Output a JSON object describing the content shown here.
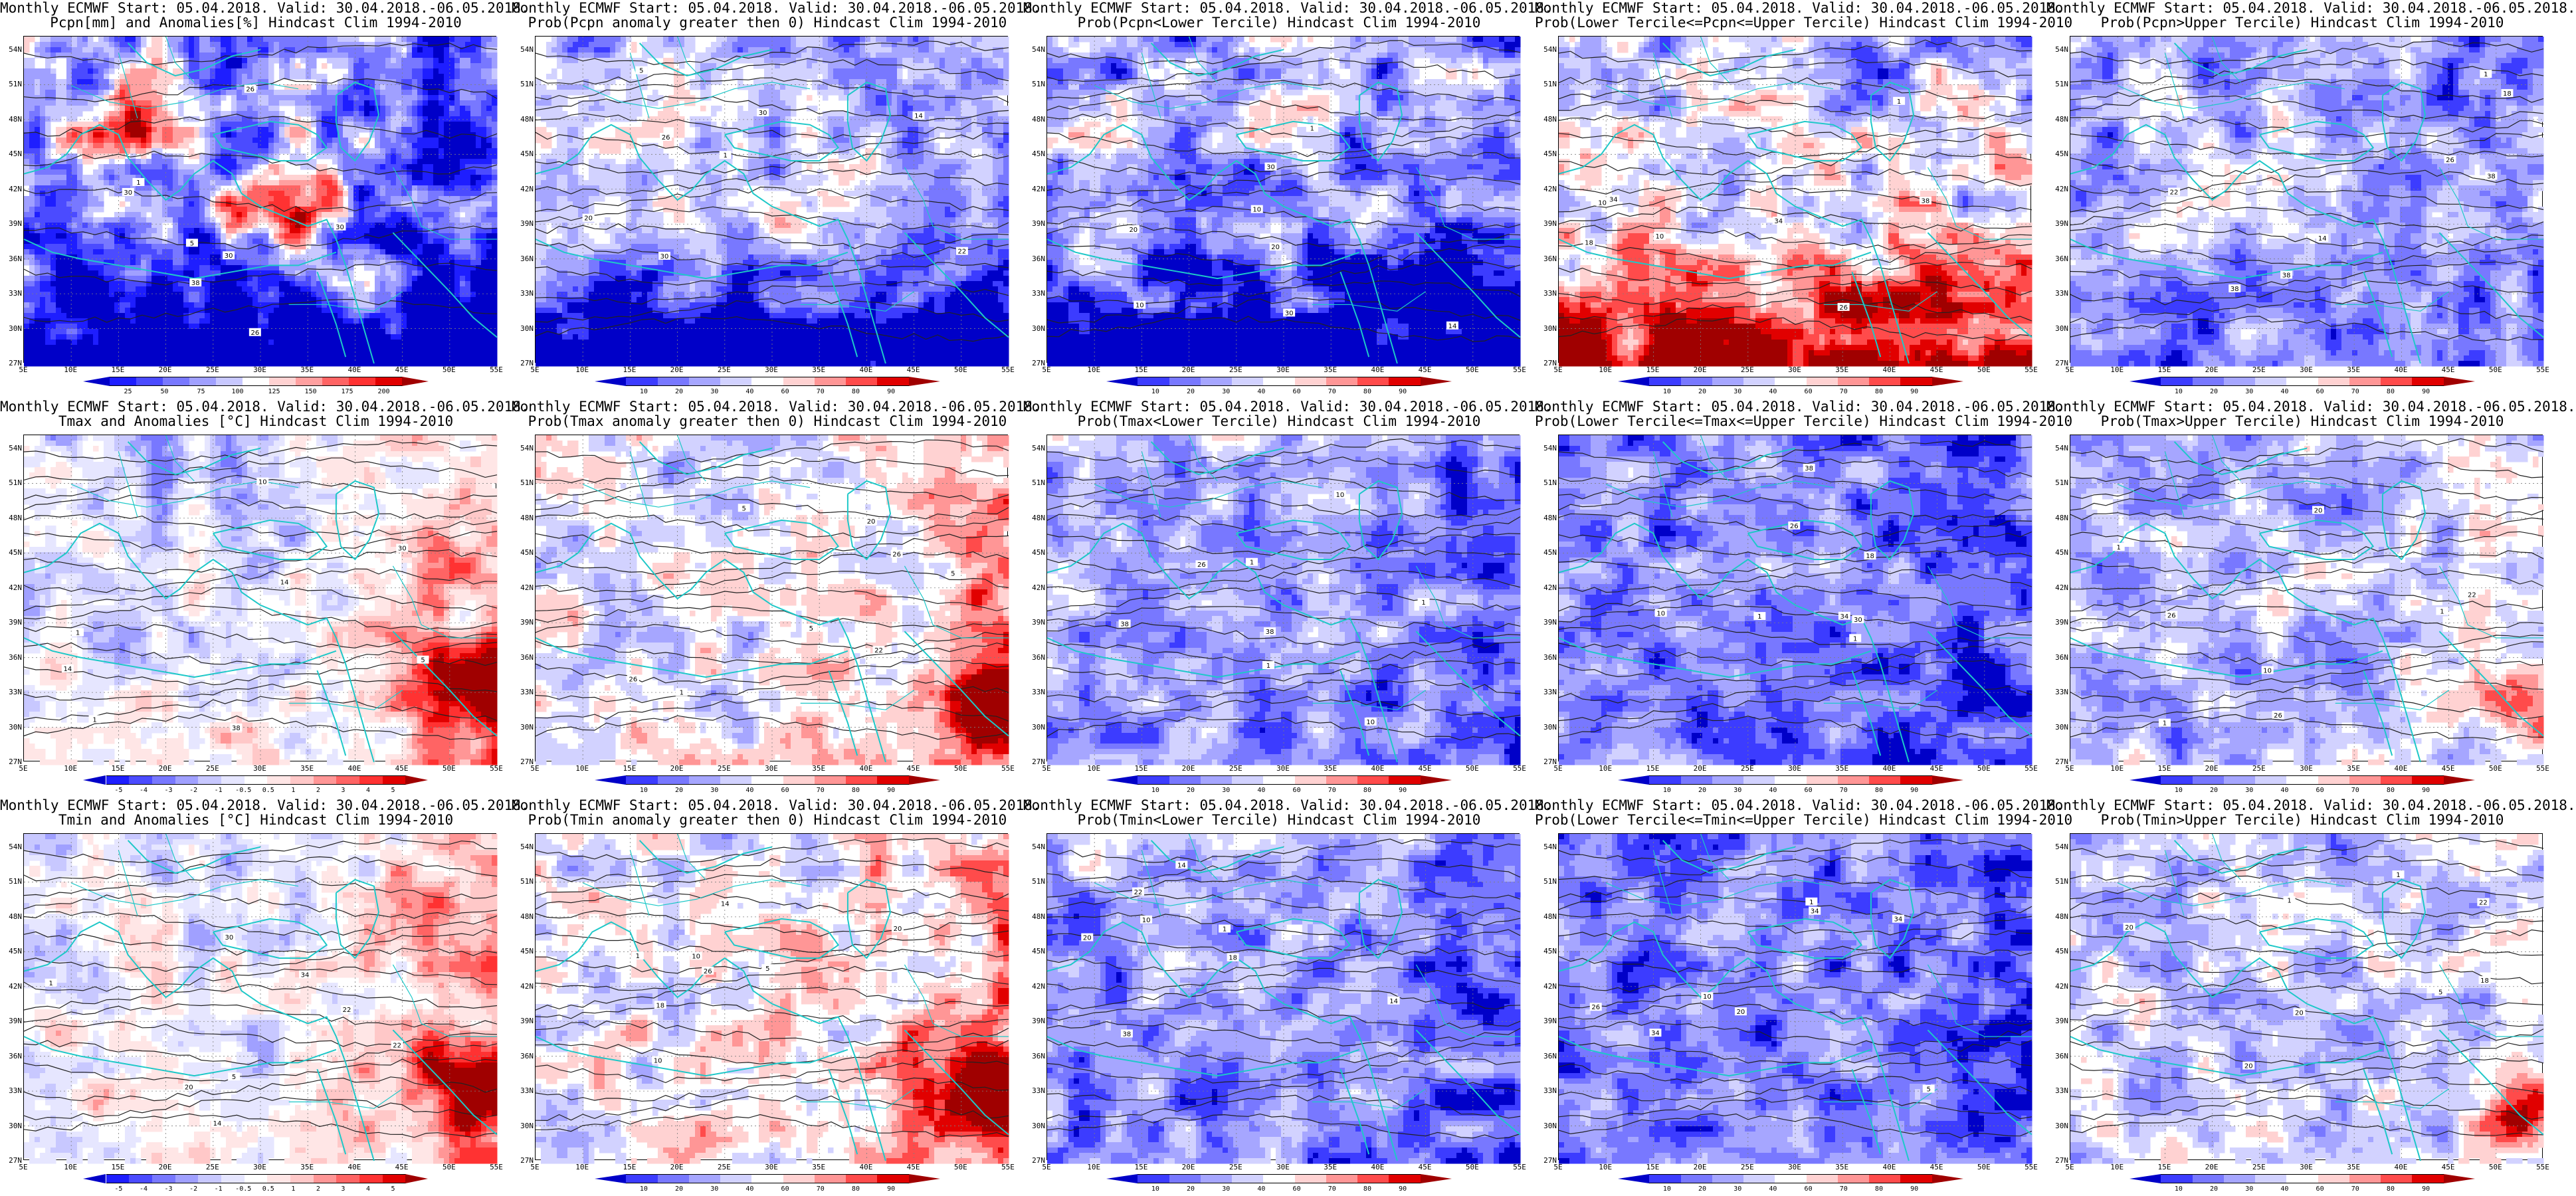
{
  "panels": [
    {
      "id": "pcpn-anom",
      "t1": "Monthly ECMWF Start: 05.04.2018. Valid: 30.04.2018.-06.05.2018.",
      "t2": "Pcpn[mm] and Anomalies[%] Hindcast Clim 1994-2010",
      "cbar": "pcpn"
    },
    {
      "id": "pcpn-prob-pos",
      "t1": "Monthly ECMWF Start: 05.04.2018. Valid: 30.04.2018.-06.05.2018.",
      "t2": "Prob(Pcpn anomaly greater then 0) Hindcast Clim 1994-2010",
      "cbar": "prob"
    },
    {
      "id": "pcpn-prob-lower",
      "t1": "Monthly ECMWF Start: 05.04.2018. Valid: 30.04.2018.-06.05.2018.",
      "t2": "Prob(Pcpn<Lower Tercile) Hindcast Clim 1994-2010",
      "cbar": "prob"
    },
    {
      "id": "pcpn-prob-middle",
      "t1": "Monthly ECMWF Start: 05.04.2018. Valid: 30.04.2018.-06.05.2018.",
      "t2": "Prob(Lower Tercile<=Pcpn<=Upper Tercile) Hindcast Clim 1994-2010",
      "cbar": "prob"
    },
    {
      "id": "pcpn-prob-upper",
      "t1": "Monthly ECMWF Start: 05.04.2018. Valid: 30.04.2018.-06.05.2018.",
      "t2": "Prob(Pcpn>Upper Tercile) Hindcast Clim 1994-2010",
      "cbar": "prob"
    },
    {
      "id": "tmax-anom",
      "t1": "Monthly ECMWF Start: 05.04.2018. Valid: 30.04.2018.-06.05.2018.",
      "t2": "Tmax and Anomalies [°C] Hindcast Clim 1994-2010",
      "cbar": "temp"
    },
    {
      "id": "tmax-prob-pos",
      "t1": "Monthly ECMWF Start: 05.04.2018. Valid: 30.04.2018.-06.05.2018.",
      "t2": "Prob(Tmax anomaly greater then 0) Hindcast Clim 1994-2010",
      "cbar": "prob"
    },
    {
      "id": "tmax-prob-lower",
      "t1": "Monthly ECMWF Start: 05.04.2018. Valid: 30.04.2018.-06.05.2018.",
      "t2": "Prob(Tmax<Lower Tercile) Hindcast Clim 1994-2010",
      "cbar": "prob"
    },
    {
      "id": "tmax-prob-middle",
      "t1": "Monthly ECMWF Start: 05.04.2018. Valid: 30.04.2018.-06.05.2018.",
      "t2": "Prob(Lower Tercile<=Tmax<=Upper Tercile) Hindcast Clim 1994-2010",
      "cbar": "prob"
    },
    {
      "id": "tmax-prob-upper",
      "t1": "Monthly ECMWF Start: 05.04.2018. Valid: 30.04.2018.-06.05.2018.",
      "t2": "Prob(Tmax>Upper Tercile) Hindcast Clim 1994-2010",
      "cbar": "prob"
    },
    {
      "id": "tmin-anom",
      "t1": "Monthly ECMWF Start: 05.04.2018. Valid: 30.04.2018.-06.05.2018.",
      "t2": "Tmin and Anomalies [°C] Hindcast Clim 1994-2010",
      "cbar": "temp"
    },
    {
      "id": "tmin-prob-pos",
      "t1": "Monthly ECMWF Start: 05.04.2018. Valid: 30.04.2018.-06.05.2018.",
      "t2": "Prob(Tmin anomaly greater then 0) Hindcast Clim 1994-2010",
      "cbar": "prob"
    },
    {
      "id": "tmin-prob-lower",
      "t1": "Monthly ECMWF Start: 05.04.2018. Valid: 30.04.2018.-06.05.2018.",
      "t2": "Prob(Tmin<Lower Tercile) Hindcast Clim 1994-2010",
      "cbar": "prob"
    },
    {
      "id": "tmin-prob-middle",
      "t1": "Monthly ECMWF Start: 05.04.2018. Valid: 30.04.2018.-06.05.2018.",
      "t2": "Prob(Lower Tercile<=Tmin<=Upper Tercile) Hindcast Clim 1994-2010",
      "cbar": "prob"
    },
    {
      "id": "tmin-prob-upper",
      "t1": "Monthly ECMWF Start: 05.04.2018. Valid: 30.04.2018.-06.05.2018.",
      "t2": "Prob(Tmin>Upper Tercile) Hindcast Clim 1994-2010",
      "cbar": "prob"
    }
  ],
  "axes": {
    "lat_labels": [
      "54N",
      "51N",
      "48N",
      "45N",
      "42N",
      "39N",
      "36N",
      "33N",
      "30N",
      "27N"
    ],
    "lon_labels": [
      "5E",
      "10E",
      "15E",
      "20E",
      "25E",
      "30E",
      "35E",
      "40E",
      "45E",
      "50E",
      "55E"
    ]
  },
  "colorbars": {
    "prob": {
      "colors": [
        "#0000c8",
        "#3c3cff",
        "#7878ff",
        "#a6a6ff",
        "#d2d2ff",
        "#ffffff",
        "#ffd2d2",
        "#ff9696",
        "#ff4b4b",
        "#e10000",
        "#a00000"
      ],
      "ticks": [
        "10",
        "20",
        "30",
        "40",
        "60",
        "70",
        "80",
        "90"
      ]
    },
    "temp": {
      "colors": [
        "#0000c8",
        "#1e1eff",
        "#4b4bff",
        "#7878ff",
        "#a0a0ff",
        "#c8c8ff",
        "#e6e6ff",
        "#ffffff",
        "#ffe6e6",
        "#ffc8c8",
        "#ff9696",
        "#ff6464",
        "#ff3232",
        "#e10000",
        "#a00000"
      ],
      "ticks": [
        "-5",
        "-4",
        "-3",
        "-2",
        "-1",
        "-0.5",
        "0.5",
        "1",
        "2",
        "3",
        "4",
        "5"
      ]
    },
    "pcpn": {
      "colors": [
        "#0000c8",
        "#1e1eff",
        "#4b4bff",
        "#7878ff",
        "#a0a0ff",
        "#c8c8ff",
        "#ffffff",
        "#ffd2d2",
        "#ffa0a0",
        "#ff6464",
        "#ff3232",
        "#e10000",
        "#a00000"
      ],
      "ticks": [
        "25",
        "50",
        "75",
        "100",
        "125",
        "150",
        "175",
        "200"
      ]
    }
  },
  "contour_labels": [
    "10",
    "14",
    "18",
    "20",
    "22",
    "26",
    "30",
    "34",
    "38",
    "5",
    "1"
  ]
}
